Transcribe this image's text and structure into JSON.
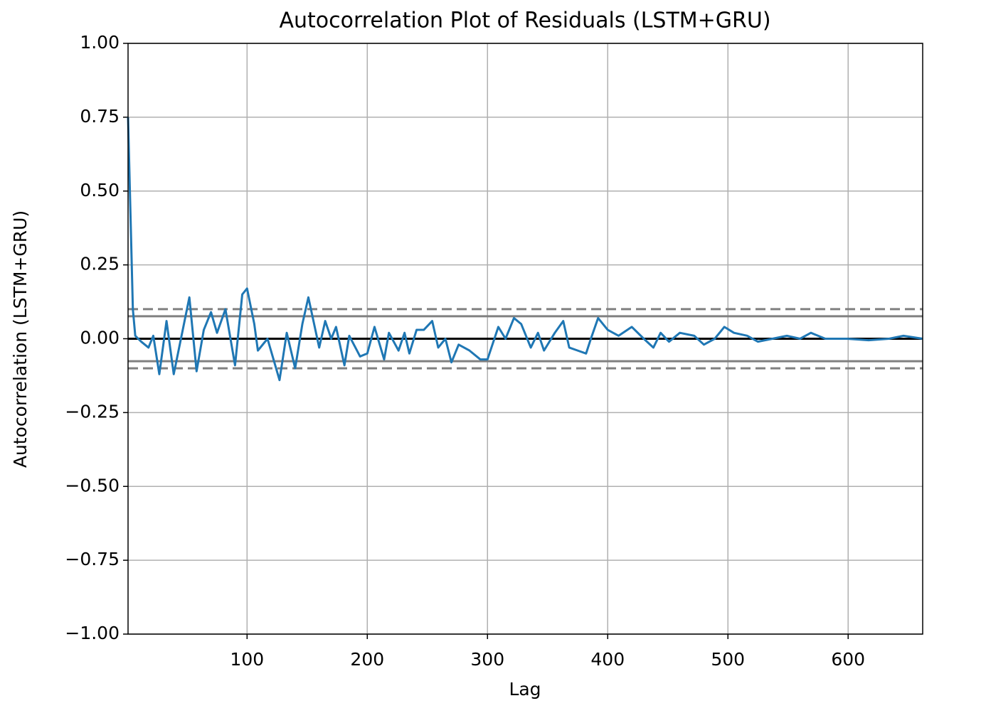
{
  "chart_data": {
    "type": "line",
    "title": "Autocorrelation Plot of Residuals (LSTM+GRU)",
    "xlabel": "Lag",
    "ylabel": "Autocorrelation (LSTM+GRU)",
    "x": [
      1,
      5,
      7,
      12,
      18,
      22,
      27,
      33,
      39,
      46,
      52,
      58,
      64,
      70,
      75,
      82,
      90,
      96,
      100,
      106,
      109,
      117,
      127,
      133,
      140,
      146,
      151,
      160,
      165,
      170,
      174,
      181,
      185,
      194,
      200,
      206,
      214,
      218,
      226,
      231,
      235,
      241,
      247,
      254,
      259,
      265,
      270,
      276,
      285,
      294,
      300,
      309,
      315,
      322,
      328,
      336,
      342,
      347,
      356,
      363,
      368,
      375,
      382,
      386,
      392,
      400,
      409,
      420,
      430,
      438,
      444,
      451,
      460,
      472,
      480,
      489,
      497,
      505,
      516,
      525,
      537,
      549,
      560,
      569,
      581,
      599,
      617,
      634,
      646,
      662
    ],
    "series": [
      {
        "name": "Autocorrelation (LSTM+GRU)",
        "color": "#1f77b4",
        "values": [
          0.75,
          0.1,
          0.01,
          -0.01,
          -0.03,
          0.01,
          -0.12,
          0.06,
          -0.12,
          0.02,
          0.14,
          -0.11,
          0.03,
          0.09,
          0.02,
          0.1,
          -0.09,
          0.15,
          0.17,
          0.05,
          -0.04,
          0.0,
          -0.14,
          0.02,
          -0.1,
          0.05,
          0.14,
          -0.03,
          0.06,
          0.0,
          0.04,
          -0.09,
          0.01,
          -0.06,
          -0.05,
          0.04,
          -0.07,
          0.02,
          -0.04,
          0.02,
          -0.05,
          0.03,
          0.03,
          0.06,
          -0.03,
          0.0,
          -0.08,
          -0.02,
          -0.04,
          -0.07,
          -0.07,
          0.04,
          0.0,
          0.07,
          0.05,
          -0.03,
          0.02,
          -0.04,
          0.02,
          0.06,
          -0.03,
          -0.04,
          -0.05,
          0.0,
          0.07,
          0.03,
          0.01,
          0.04,
          0.0,
          -0.03,
          0.02,
          -0.01,
          0.02,
          0.01,
          -0.02,
          0.0,
          0.04,
          0.02,
          0.01,
          -0.01,
          0.0,
          0.01,
          0.0,
          0.02,
          0.0,
          0.0,
          -0.005,
          0.0,
          0.01,
          0.0
        ]
      }
    ],
    "reference_lines": [
      {
        "value": 0.1001,
        "style": "dashed",
        "color": "#808080"
      },
      {
        "value": 0.0762,
        "style": "solid",
        "color": "#808080"
      },
      {
        "value": 0,
        "style": "solid",
        "color": "#000000"
      },
      {
        "value": -0.0762,
        "style": "solid",
        "color": "#808080"
      },
      {
        "value": -0.1001,
        "style": "dashed",
        "color": "#808080"
      }
    ],
    "xlim": [
      1,
      662
    ],
    "ylim": [
      -1,
      1
    ],
    "xticks": [
      100,
      200,
      300,
      400,
      500,
      600
    ],
    "yticks": [
      {
        "value": -1,
        "label": "−1.00"
      },
      {
        "value": -0.75,
        "label": "−0.75"
      },
      {
        "value": -0.5,
        "label": "−0.50"
      },
      {
        "value": -0.25,
        "label": "−0.25"
      },
      {
        "value": 0,
        "label": "0.00"
      },
      {
        "value": 0.25,
        "label": "0.25"
      },
      {
        "value": 0.5,
        "label": "0.50"
      },
      {
        "value": 0.75,
        "label": "0.75"
      },
      {
        "value": 1,
        "label": "1.00"
      }
    ],
    "grid": true
  }
}
